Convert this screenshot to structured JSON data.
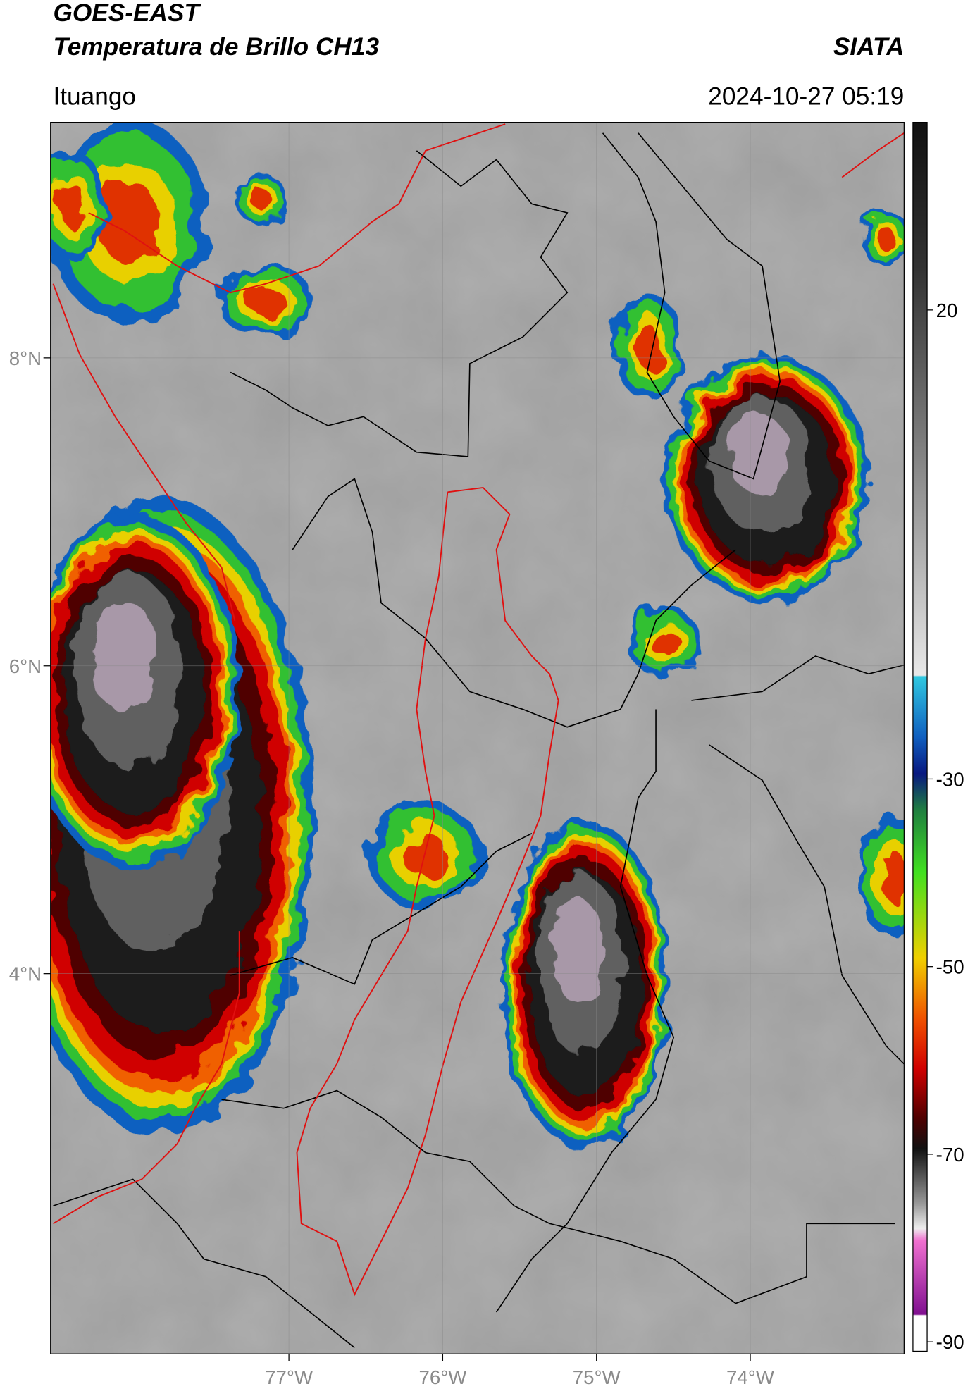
{
  "header": {
    "title": "GOES-EAST",
    "subtitle": "Temperatura de Brillo CH13",
    "source": "SIATA",
    "location": "Ituango",
    "datetime": "2024-10-27 05:19"
  },
  "map": {
    "xlim": [
      -78.55,
      -73.0
    ],
    "ylim": [
      1.53,
      9.53
    ],
    "xticks": [
      {
        "value": -77,
        "label": "77°W"
      },
      {
        "value": -76,
        "label": "76°W"
      },
      {
        "value": -75,
        "label": "75°W"
      },
      {
        "value": -74,
        "label": "74°W"
      }
    ],
    "yticks": [
      {
        "value": 8,
        "label": "8°N"
      },
      {
        "value": 6,
        "label": "6°N"
      },
      {
        "value": 4,
        "label": "4°N"
      }
    ],
    "grid": true
  },
  "colorbar": {
    "lim": [
      -91,
      40
    ],
    "ticks": [
      20,
      -30,
      -50,
      -70,
      -90
    ]
  }
}
